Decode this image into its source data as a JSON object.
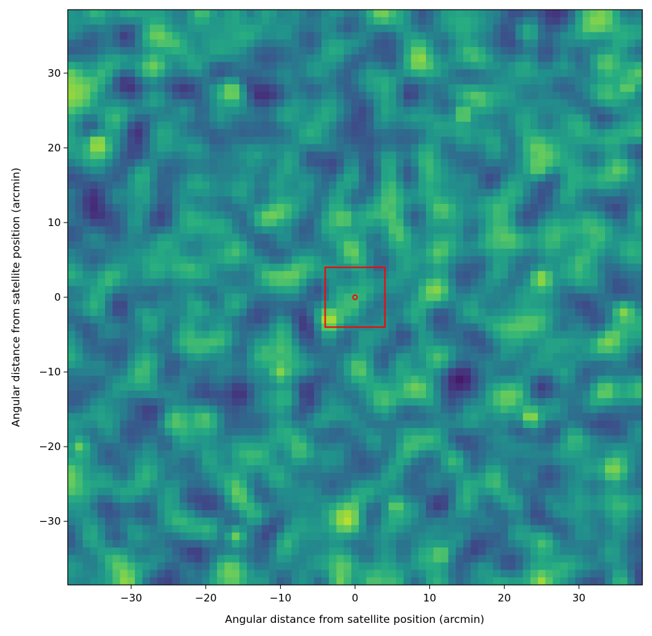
{
  "chart_data": {
    "type": "heatmap",
    "title": "",
    "xlabel": "Angular distance from satellite position (arcmin)",
    "ylabel": "Angular distance from satellite position (arcmin)",
    "xlim": [
      -38.5,
      38.5
    ],
    "ylim": [
      -38.5,
      38.5
    ],
    "xticks": [
      -30,
      -20,
      -10,
      0,
      10,
      20,
      30
    ],
    "yticks": [
      -30,
      -20,
      -10,
      0,
      10,
      20,
      30
    ],
    "grid": false,
    "colormap": "viridis",
    "grid_cells": 77,
    "overlays": [
      {
        "type": "rectangle",
        "x": [
          -4,
          4
        ],
        "y": [
          -4,
          4
        ],
        "color": "#ff0000"
      },
      {
        "type": "circle-marker",
        "x": 0,
        "y": 0,
        "color": "#ff0000"
      }
    ],
    "hot_spots": [
      {
        "x": -34.5,
        "y": 20.5,
        "level": 0.95
      },
      {
        "x": -3.5,
        "y": -3,
        "level": 0.95
      },
      {
        "x": 25,
        "y": 2.5,
        "level": 0.9
      },
      {
        "x": 23.5,
        "y": -16,
        "level": 0.9
      },
      {
        "x": -16.5,
        "y": 27.5,
        "level": 0.85
      },
      {
        "x": 14.5,
        "y": 24.5,
        "level": 0.85
      },
      {
        "x": 25,
        "y": -38,
        "level": 0.9
      },
      {
        "x": 34.5,
        "y": -23,
        "level": 0.85
      },
      {
        "x": -27,
        "y": 31,
        "level": 0.8
      },
      {
        "x": 36,
        "y": -2,
        "level": 0.85
      },
      {
        "x": -10,
        "y": -10,
        "level": 0.85
      },
      {
        "x": 5.5,
        "y": -28,
        "level": 0.8
      },
      {
        "x": -1.5,
        "y": 10.5,
        "level": 0.8
      },
      {
        "x": 24.5,
        "y": 17.5,
        "level": 0.8
      },
      {
        "x": -16,
        "y": -32,
        "level": 0.8
      },
      {
        "x": 11.5,
        "y": -34.5,
        "level": 0.8
      },
      {
        "x": 36.5,
        "y": 28,
        "level": 0.8
      },
      {
        "x": -24,
        "y": -16.5,
        "level": 0.75
      },
      {
        "x": -37,
        "y": -20,
        "level": 0.8
      }
    ]
  }
}
